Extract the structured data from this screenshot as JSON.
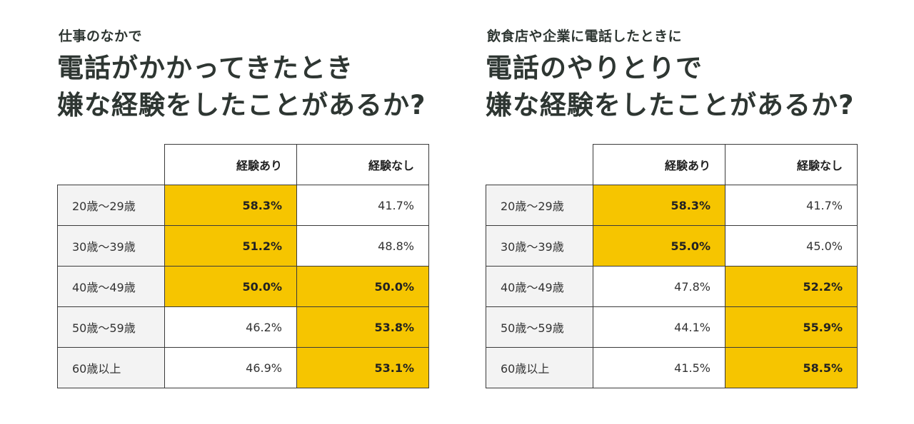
{
  "colors": {
    "highlight": "#f6c500",
    "label_bg": "#f3f3f3",
    "title": "#2e3632",
    "border": "#3a3a3a"
  },
  "left": {
    "subtitle": "仕事のなかで",
    "title_line1": "電話がかかってきたとき",
    "title_line2": "嫌な経験をしたことがあるか?",
    "headers": [
      "経験あり",
      "経験なし"
    ],
    "rows": [
      {
        "label": "20歳〜29歳",
        "yes": "58.3%",
        "no": "41.7%"
      },
      {
        "label": "30歳〜39歳",
        "yes": "51.2%",
        "no": "48.8%"
      },
      {
        "label": "40歳〜49歳",
        "yes": "50.0%",
        "no": "50.0%"
      },
      {
        "label": "50歳〜59歳",
        "yes": "46.2%",
        "no": "53.8%"
      },
      {
        "label": "60歳以上",
        "yes": "46.9%",
        "no": "53.1%"
      }
    ]
  },
  "right": {
    "subtitle": "飲食店や企業に電話したときに",
    "title_line1": "電話のやりとりで",
    "title_line2": "嫌な経験をしたことがあるか?",
    "headers": [
      "経験あり",
      "経験なし"
    ],
    "rows": [
      {
        "label": "20歳〜29歳",
        "yes": "58.3%",
        "no": "41.7%"
      },
      {
        "label": "30歳〜39歳",
        "yes": "55.0%",
        "no": "45.0%"
      },
      {
        "label": "40歳〜49歳",
        "yes": "47.8%",
        "no": "52.2%"
      },
      {
        "label": "50歳〜59歳",
        "yes": "44.1%",
        "no": "55.9%"
      },
      {
        "label": "60歳以上",
        "yes": "41.5%",
        "no": "58.5%"
      }
    ]
  },
  "chart_data": [
    {
      "type": "table",
      "title": "電話がかかってきたとき嫌な経験をしたことがあるか?",
      "subtitle": "仕事のなかで",
      "categories": [
        "20歳〜29歳",
        "30歳〜39歳",
        "40歳〜49歳",
        "50歳〜59歳",
        "60歳以上"
      ],
      "series": [
        {
          "name": "経験あり",
          "values": [
            58.3,
            51.2,
            50.0,
            46.2,
            46.9
          ]
        },
        {
          "name": "経験なし",
          "values": [
            41.7,
            48.8,
            50.0,
            53.8,
            53.1
          ]
        }
      ],
      "highlight_rule": "majority value in each row (ties highlight both)"
    },
    {
      "type": "table",
      "title": "電話のやりとりで嫌な経験をしたことがあるか?",
      "subtitle": "飲食店や企業に電話したときに",
      "categories": [
        "20歳〜29歳",
        "30歳〜39歳",
        "40歳〜49歳",
        "50歳〜59歳",
        "60歳以上"
      ],
      "series": [
        {
          "name": "経験あり",
          "values": [
            58.3,
            55.0,
            47.8,
            44.1,
            41.5
          ]
        },
        {
          "name": "経験なし",
          "values": [
            41.7,
            45.0,
            52.2,
            55.9,
            58.5
          ]
        }
      ],
      "highlight_rule": "majority value in each row (ties highlight both)"
    }
  ]
}
